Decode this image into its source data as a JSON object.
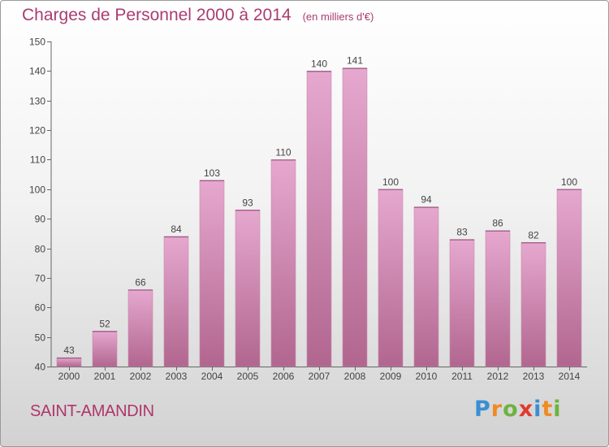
{
  "chart_data": {
    "type": "bar",
    "title": "Charges de Personnel 2000 à 2014",
    "subtitle": "(en milliers d'€)",
    "categories": [
      "2000",
      "2001",
      "2002",
      "2003",
      "2004",
      "2005",
      "2006",
      "2007",
      "2008",
      "2009",
      "2010",
      "2011",
      "2012",
      "2013",
      "2014"
    ],
    "values": [
      43,
      52,
      66,
      84,
      103,
      93,
      110,
      140,
      141,
      100,
      94,
      83,
      86,
      82,
      100
    ],
    "ylim": [
      40,
      150
    ],
    "yticks": [
      40,
      50,
      60,
      70,
      80,
      90,
      100,
      110,
      120,
      130,
      140,
      150
    ],
    "grid": false,
    "bar_color_top": "#e6a8cf",
    "bar_color_bottom": "#b1668f"
  },
  "place_name": "SAINT-AMANDIN",
  "brand": {
    "letters": [
      "P",
      "r",
      "o",
      "x",
      "i",
      "t",
      "i"
    ],
    "colors": [
      "#3a8fd3",
      "#f08a24",
      "#6cb33f",
      "#e23a2c",
      "#3a8fd3",
      "#f08a24",
      "#6cb33f"
    ]
  }
}
